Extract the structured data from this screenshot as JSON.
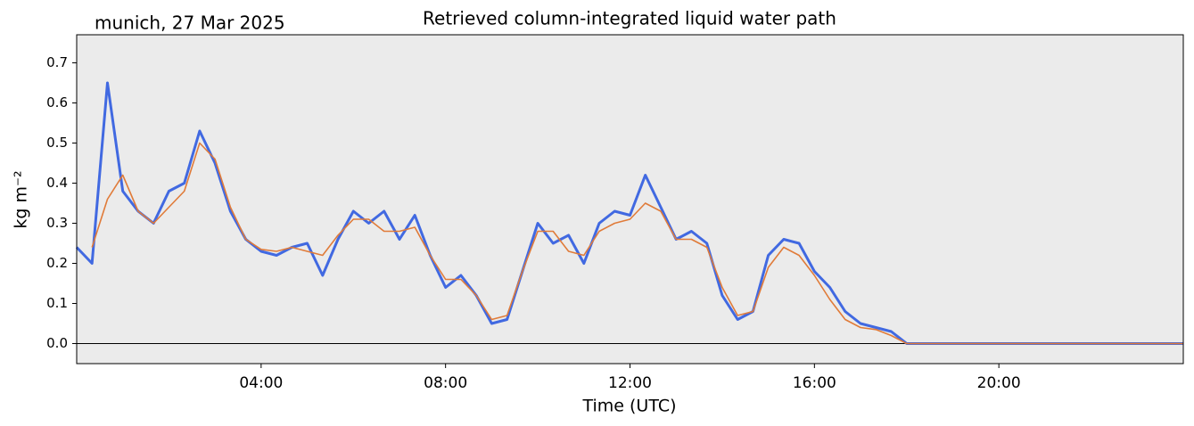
{
  "chart_data": {
    "type": "line",
    "title": "Retrieved column-integrated liquid water path",
    "subtitle": "munich, 27 Mar 2025",
    "x_label": "Time (UTC)",
    "y_label": "kg m⁻²",
    "x": [
      "00:00",
      "00:20",
      "00:40",
      "01:00",
      "01:20",
      "01:40",
      "02:00",
      "02:20",
      "02:40",
      "03:00",
      "03:20",
      "03:40",
      "04:00",
      "04:20",
      "04:40",
      "05:00",
      "05:20",
      "05:40",
      "06:00",
      "06:20",
      "06:40",
      "07:00",
      "07:20",
      "07:40",
      "08:00",
      "08:20",
      "08:40",
      "09:00",
      "09:20",
      "09:40",
      "10:00",
      "10:20",
      "10:40",
      "11:00",
      "11:20",
      "11:40",
      "12:00",
      "12:20",
      "12:40",
      "13:00",
      "13:20",
      "13:40",
      "14:00",
      "14:20",
      "14:40",
      "15:00",
      "15:20",
      "15:40",
      "16:00",
      "16:20",
      "16:40",
      "17:00",
      "17:20",
      "17:40",
      "18:00",
      "18:20",
      "18:40",
      "19:00",
      "19:20",
      "19:40",
      "20:00",
      "20:20",
      "20:40",
      "21:00",
      "21:20",
      "21:40",
      "22:00",
      "22:20",
      "22:40",
      "23:00",
      "23:20",
      "23:40",
      "24:00"
    ],
    "series": [
      {
        "color": "#4169e1",
        "values": [
          0.24,
          0.2,
          0.65,
          0.38,
          0.33,
          0.3,
          0.38,
          0.4,
          0.53,
          0.45,
          0.33,
          0.26,
          0.23,
          0.22,
          0.24,
          0.25,
          0.17,
          0.26,
          0.33,
          0.3,
          0.33,
          0.26,
          0.32,
          0.22,
          0.14,
          0.17,
          0.12,
          0.05,
          0.06,
          0.18,
          0.3,
          0.25,
          0.27,
          0.2,
          0.3,
          0.33,
          0.32,
          0.42,
          0.34,
          0.26,
          0.28,
          0.25,
          0.12,
          0.06,
          0.08,
          0.22,
          0.26,
          0.25,
          0.18,
          0.14,
          0.08,
          0.05,
          0.04,
          0.03,
          0,
          0,
          0,
          0,
          0,
          0,
          0,
          0,
          0,
          0,
          0,
          0,
          0,
          0,
          0,
          0,
          0,
          0,
          0
        ]
      },
      {
        "color": "#e07b39",
        "values": [
          null,
          0.24,
          0.36,
          0.42,
          0.33,
          0.3,
          0.34,
          0.38,
          0.5,
          0.46,
          0.34,
          0.26,
          0.235,
          0.23,
          0.24,
          0.23,
          0.22,
          0.27,
          0.31,
          0.31,
          0.28,
          0.28,
          0.29,
          0.22,
          0.16,
          0.16,
          0.12,
          0.06,
          0.07,
          0.18,
          0.28,
          0.28,
          0.23,
          0.22,
          0.28,
          0.3,
          0.31,
          0.35,
          0.33,
          0.26,
          0.26,
          0.24,
          0.14,
          0.07,
          0.08,
          0.19,
          0.24,
          0.22,
          0.17,
          0.11,
          0.06,
          0.04,
          0.035,
          0.02,
          0,
          0,
          0,
          0,
          0,
          0,
          0,
          0,
          0,
          0,
          0,
          0,
          0,
          0,
          0,
          0,
          0,
          0,
          0
        ]
      }
    ],
    "hline": 0,
    "xlim": [
      "00:00",
      "24:00"
    ],
    "xticks": [
      "04:00",
      "08:00",
      "12:00",
      "16:00",
      "20:00"
    ],
    "ylim": [
      -0.05,
      0.77
    ],
    "yticks": [
      {
        "value": 0,
        "label": "0.0"
      },
      0.1,
      0.2,
      0.3,
      0.4,
      0.5,
      0.6,
      0.7
    ]
  }
}
